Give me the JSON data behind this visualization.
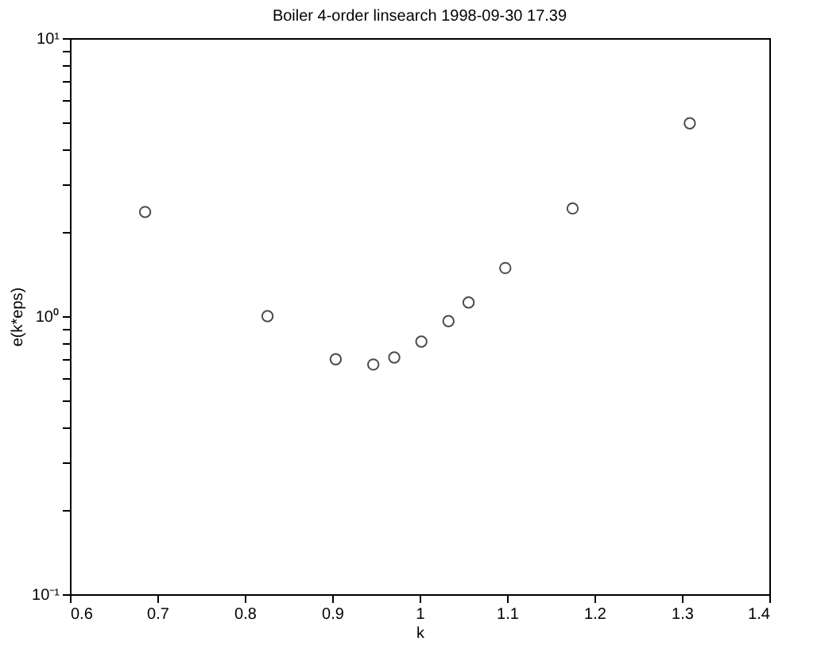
{
  "chart_data": {
    "type": "scatter",
    "title": "Boiler 4-order linsearch 1998-09-30 17.39",
    "xlabel": "k",
    "ylabel": "e(k*eps)",
    "x": [
      0.686,
      0.826,
      0.904,
      0.947,
      0.971,
      1.002,
      1.033,
      1.056,
      1.098,
      1.175,
      1.309
    ],
    "series": [
      {
        "color": "#000000",
        "values": [
          2.37,
          1.0,
          0.7,
          0.67,
          0.71,
          0.81,
          0.96,
          1.12,
          1.49,
          2.44,
          4.94
        ]
      }
    ],
    "xlim": [
      0.6,
      1.4
    ],
    "xticks": [
      0.6,
      0.7,
      0.8,
      0.9,
      1,
      1.1,
      1.2,
      1.3,
      1.4
    ],
    "ylim": [
      0.1,
      10
    ],
    "log": "y",
    "yticks": [
      {
        "value": 0.1,
        "label": "10⁻¹"
      },
      {
        "value": 0.2,
        "label": null
      },
      {
        "value": 0.3,
        "label": null
      },
      {
        "value": 0.4,
        "label": null
      },
      {
        "value": 0.5,
        "label": null
      },
      {
        "value": 0.6,
        "label": null
      },
      {
        "value": 0.7,
        "label": null
      },
      {
        "value": 0.8,
        "label": null
      },
      {
        "value": 0.9,
        "label": null
      },
      {
        "value": 1,
        "label": "10⁰"
      },
      {
        "value": 2,
        "label": null
      },
      {
        "value": 3,
        "label": null
      },
      {
        "value": 4,
        "label": null
      },
      {
        "value": 5,
        "label": null
      },
      {
        "value": 6,
        "label": null
      },
      {
        "value": 7,
        "label": null
      },
      {
        "value": 8,
        "label": null
      },
      {
        "value": 9,
        "label": null
      },
      {
        "value": 10,
        "label": "10¹"
      }
    ],
    "marker": "circle",
    "grid": false
  }
}
